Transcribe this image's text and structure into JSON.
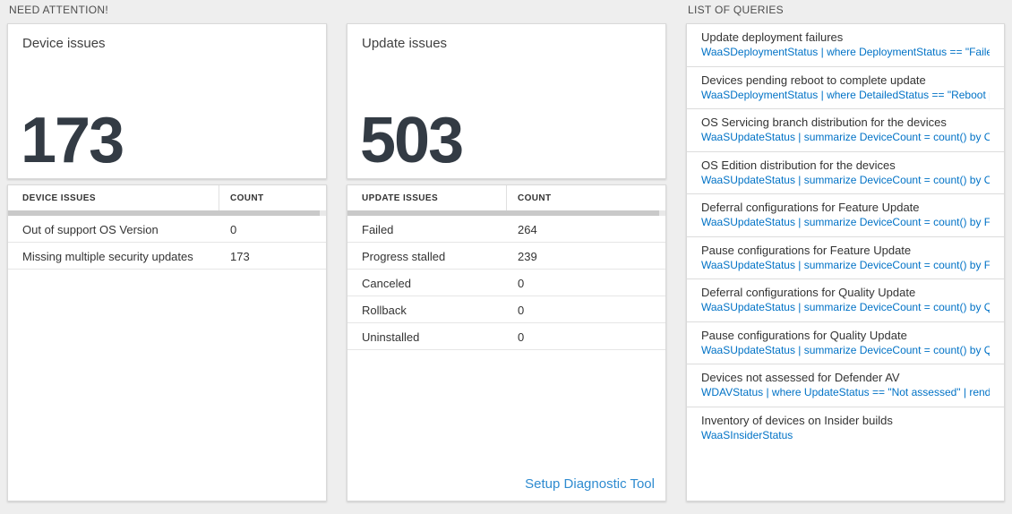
{
  "colors": {
    "background": "#eeeeee",
    "panel_bg": "#ffffff",
    "link_blue": "#0072c6",
    "setup_link_blue": "#2e8bd0",
    "big_number": "#333b44",
    "scrollbar_thumb": "#c9c9c9"
  },
  "sections": {
    "need_attention_label": "NEED ATTENTION!",
    "queries_label": "LIST OF QUERIES"
  },
  "device_card": {
    "title": "Device issues",
    "count": "173"
  },
  "device_table": {
    "headers": {
      "issue": "DEVICE ISSUES",
      "count": "COUNT"
    },
    "rows": [
      {
        "label": "Out of support OS Version",
        "count": "0"
      },
      {
        "label": "Missing multiple security updates",
        "count": "173"
      }
    ]
  },
  "update_card": {
    "title": "Update issues",
    "count": "503"
  },
  "update_table": {
    "headers": {
      "issue": "UPDATE ISSUES",
      "count": "COUNT"
    },
    "rows": [
      {
        "label": "Failed",
        "count": "264"
      },
      {
        "label": "Progress stalled",
        "count": "239"
      },
      {
        "label": "Canceled",
        "count": "0"
      },
      {
        "label": "Rollback",
        "count": "0"
      },
      {
        "label": "Uninstalled",
        "count": "0"
      }
    ],
    "footer_link": "Setup Diagnostic Tool"
  },
  "query_list": {
    "items": [
      {
        "title": "Update deployment failures",
        "query": "WaaSDeploymentStatus | where DeploymentStatus == \"Failed\" |..."
      },
      {
        "title": "Devices pending reboot to complete update",
        "query": "WaaSDeploymentStatus | where DetailedStatus == \"Reboot pend..."
      },
      {
        "title": "OS Servicing branch distribution for the devices",
        "query": "WaaSUpdateStatus | summarize DeviceCount = count() by OSSer..."
      },
      {
        "title": "OS Edition distribution for the devices",
        "query": "WaaSUpdateStatus | summarize DeviceCount = count() by OSEdit..."
      },
      {
        "title": "Deferral configurations for Feature Update",
        "query": "WaaSUpdateStatus | summarize DeviceCount = count() by Featur..."
      },
      {
        "title": "Pause configurations for Feature Update",
        "query": "WaaSUpdateStatus | summarize DeviceCount = count() by Featur..."
      },
      {
        "title": "Deferral configurations for Quality Update",
        "query": "WaaSUpdateStatus | summarize DeviceCount = count() by Qualit..."
      },
      {
        "title": "Pause configurations for Quality Update",
        "query": "WaaSUpdateStatus | summarize DeviceCount = count() by Qualit..."
      },
      {
        "title": "Devices not assessed for Defender AV",
        "query": "WDAVStatus | where UpdateStatus == \"Not assessed\" | render ta..."
      },
      {
        "title": "Inventory of devices on Insider builds",
        "query": "WaaSInsiderStatus"
      }
    ]
  }
}
